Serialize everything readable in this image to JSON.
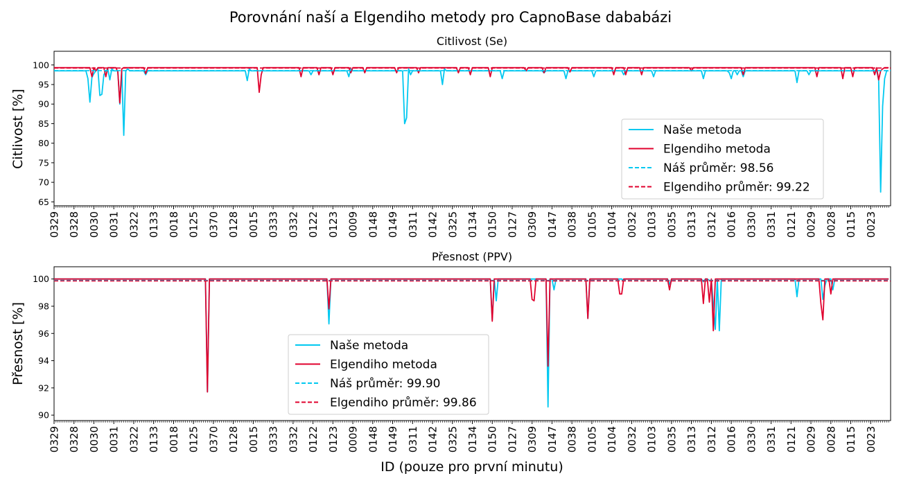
{
  "suptitle": "Porovnání naší a Elgendiho metody pro CapnoBase dababázi",
  "xlabel": "ID (pouze pro první minutu)",
  "colors": {
    "ours": "#00c8f0",
    "elgendi": "#e0002d"
  },
  "xtick_labels": [
    "0329",
    "0328",
    "0030",
    "0031",
    "0322",
    "0133",
    "0018",
    "0125",
    "0370",
    "0128",
    "0015",
    "0333",
    "0332",
    "0122",
    "0123",
    "0009",
    "0148",
    "0149",
    "0311",
    "0142",
    "0325",
    "0134",
    "0150",
    "0127",
    "0309",
    "0147",
    "0038",
    "0105",
    "0104",
    "0032",
    "0103",
    "0035",
    "0313",
    "0312",
    "0016",
    "0330",
    "0331",
    "0121",
    "0029",
    "0028",
    "0115",
    "0023"
  ],
  "chart_data": [
    {
      "type": "line",
      "title": "Citlivost (Se)",
      "ylabel": "Citlivost [%]",
      "ylim": [
        64,
        103.5
      ],
      "yticks": [
        65,
        70,
        75,
        80,
        85,
        90,
        95,
        100
      ],
      "xlim": [
        0,
        420
      ],
      "n_points": 420,
      "legend_position": "lower-right",
      "series": [
        {
          "name": "Naše metoda",
          "style": "solid",
          "color": "#00c8f0",
          "baseline": 98.5,
          "features": [
            [
              18,
              96.5
            ],
            [
              19,
              90.5
            ],
            [
              20,
              96.8
            ],
            [
              21,
              97.8
            ],
            [
              23,
              99
            ],
            [
              24,
              92.2
            ],
            [
              25,
              92.5
            ],
            [
              26,
              97.5
            ],
            [
              28,
              99
            ],
            [
              29,
              96.2
            ],
            [
              30,
              99
            ],
            [
              34,
              90
            ],
            [
              36,
              82
            ],
            [
              38,
              99
            ],
            [
              48,
              97.5
            ],
            [
              100,
              96
            ],
            [
              101,
              99
            ],
            [
              133,
              97.5
            ],
            [
              153,
              97
            ],
            [
              154,
              99
            ],
            [
              157,
              98.5
            ],
            [
              182,
              85
            ],
            [
              183,
              86.5
            ],
            [
              184,
              99
            ],
            [
              185,
              97.5
            ],
            [
              202,
              95
            ],
            [
              203,
              99
            ],
            [
              233,
              96.5
            ],
            [
              254,
              98
            ],
            [
              266,
              96.5
            ],
            [
              280,
              97
            ],
            [
              296,
              97.5
            ],
            [
              311,
              97
            ],
            [
              337,
              96.5
            ],
            [
              350,
              98
            ],
            [
              351,
              96.5
            ],
            [
              354,
              97.5
            ],
            [
              358,
              97
            ],
            [
              385,
              95.5
            ],
            [
              392,
              97.5
            ],
            [
              428,
              96.2
            ],
            [
              429,
              67.5
            ],
            [
              430,
              89.5
            ],
            [
              431,
              96.5
            ]
          ]
        },
        {
          "name": "Elgendiho metoda",
          "style": "solid",
          "color": "#e0002d",
          "baseline": 99.3,
          "features": [
            [
              20,
              97
            ],
            [
              22,
              98.5
            ],
            [
              27,
              97
            ],
            [
              33,
              98.3
            ],
            [
              34,
              90.3
            ],
            [
              35,
              99
            ],
            [
              48,
              97.8
            ],
            [
              106,
              93
            ],
            [
              107,
              97.5
            ],
            [
              128,
              97
            ],
            [
              137,
              97.5
            ],
            [
              145,
              97.5
            ],
            [
              154,
              98
            ],
            [
              161,
              98
            ],
            [
              178,
              98
            ],
            [
              189,
              98
            ],
            [
              210,
              98
            ],
            [
              216,
              97.5
            ],
            [
              226,
              97
            ],
            [
              245,
              98.5
            ],
            [
              254,
              98
            ],
            [
              268,
              98.2
            ],
            [
              290,
              97.5
            ],
            [
              297,
              97.5
            ],
            [
              305,
              97.5
            ],
            [
              331,
              98.5
            ],
            [
              358,
              97.5
            ],
            [
              396,
              97
            ],
            [
              409,
              96.5
            ],
            [
              414,
              97
            ],
            [
              426,
              97.5
            ],
            [
              428,
              96.2
            ],
            [
              429,
              98.5
            ],
            [
              430,
              99
            ]
          ]
        },
        {
          "name": "Náš průměr: 98.56",
          "style": "dashed",
          "color": "#00c8f0",
          "value": 98.56
        },
        {
          "name": "Elgendiho průměr: 99.22",
          "style": "dashed",
          "color": "#e0002d",
          "value": 99.22
        }
      ]
    },
    {
      "type": "line",
      "title": "Přesnost (PPV)",
      "ylabel": "Přesnost [%]",
      "ylim": [
        89.6,
        100.9
      ],
      "yticks": [
        90,
        92,
        94,
        96,
        98,
        100
      ],
      "xlim": [
        0,
        420
      ],
      "n_points": 420,
      "legend_position": "lower-center",
      "series": [
        {
          "name": "Naše metoda",
          "style": "solid",
          "color": "#00c8f0",
          "baseline": 100,
          "features": [
            [
              80,
              91.7
            ],
            [
              143,
              96.7
            ],
            [
              227,
              97
            ],
            [
              229,
              98.4
            ],
            [
              256,
              90.6
            ],
            [
              259,
              99.2
            ],
            [
              277,
              97.1
            ],
            [
              296,
              99.9
            ],
            [
              319,
              99.6
            ],
            [
              337,
              99.8
            ],
            [
              340,
              99.9
            ],
            [
              341,
              99.9
            ],
            [
              342,
              98.2
            ],
            [
              343,
              96.3
            ],
            [
              345,
              96.2
            ],
            [
              385,
              98.7
            ],
            [
              399,
              98.5
            ],
            [
              400,
              99.5
            ],
            [
              404,
              99.2
            ]
          ]
        },
        {
          "name": "Elgendiho metoda",
          "style": "solid",
          "color": "#e0002d",
          "baseline": 100,
          "features": [
            [
              80,
              91.7
            ],
            [
              143,
              97.8
            ],
            [
              227,
              96.9
            ],
            [
              248,
              98.5
            ],
            [
              249,
              98.4
            ],
            [
              256,
              93.6
            ],
            [
              277,
              97.1
            ],
            [
              294,
              98.9
            ],
            [
              295,
              98.9
            ],
            [
              319,
              99.2
            ],
            [
              337,
              98.2
            ],
            [
              340,
              98.3
            ],
            [
              342,
              96.2
            ],
            [
              398,
              98.2
            ],
            [
              399,
              97
            ],
            [
              403,
              98.9
            ]
          ]
        },
        {
          "name": "Náš průměr: 99.90",
          "style": "dashed",
          "color": "#00c8f0",
          "value": 99.9
        },
        {
          "name": "Elgendiho průměr: 99.86",
          "style": "dashed",
          "color": "#e0002d",
          "value": 99.86
        }
      ]
    }
  ]
}
